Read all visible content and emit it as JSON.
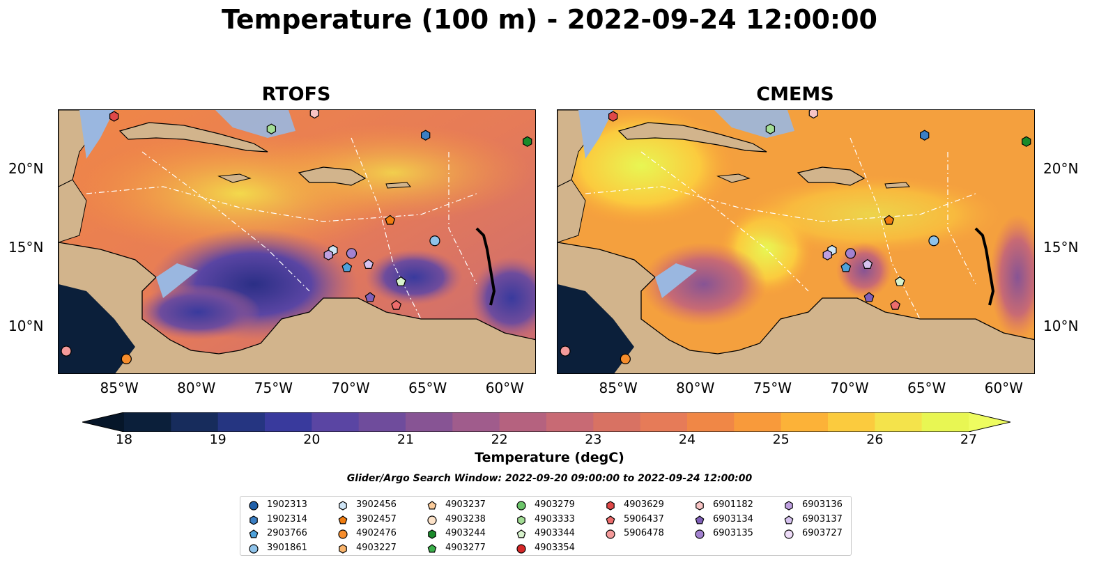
{
  "title": "Temperature (100 m) - 2022-09-24 12:00:00",
  "panels": [
    {
      "title": "RTOFS"
    },
    {
      "title": "CMEMS"
    }
  ],
  "axes": {
    "lon_ticks": [
      "85°W",
      "80°W",
      "75°W",
      "70°W",
      "65°W",
      "60°W"
    ],
    "lat_ticks": [
      "20°N",
      "15°N",
      "10°N"
    ]
  },
  "colorbar": {
    "label": "Temperature (degC)",
    "ticks": [
      "18",
      "19",
      "20",
      "21",
      "22",
      "23",
      "24",
      "25",
      "26",
      "27"
    ],
    "colors": [
      "#0b1f3a",
      "#172c5c",
      "#253581",
      "#393a9d",
      "#5a45a3",
      "#6f4c9c",
      "#875494",
      "#a05c8c",
      "#b5627f",
      "#c86a74",
      "#d87263",
      "#e67b58",
      "#f08746",
      "#f89a3b",
      "#fcb238",
      "#fbcb3e",
      "#f4e34b",
      "#e8f653"
    ],
    "over_color": "#eefc60",
    "under_color": "#061629"
  },
  "search_window": "Glider/Argo Search Window: 2022-09-20 09:00:00 to 2022-09-24 12:00:00",
  "legend": {
    "items": [
      {
        "label": "1902313",
        "marker": "circle",
        "color": "#1f5fa8"
      },
      {
        "label": "1902314",
        "marker": "hexagon",
        "color": "#3b7fc4"
      },
      {
        "label": "2903766",
        "marker": "pentagon",
        "color": "#4ea1da"
      },
      {
        "label": "3901861",
        "marker": "circle",
        "color": "#8fc3ea"
      },
      {
        "label": "3902456",
        "marker": "hexagon",
        "color": "#cfe6f7"
      },
      {
        "label": "3902457",
        "marker": "pentagon",
        "color": "#f07c10"
      },
      {
        "label": "4902476",
        "marker": "circle",
        "color": "#f68d2c"
      },
      {
        "label": "4903227",
        "marker": "hexagon",
        "color": "#f9b46c"
      },
      {
        "label": "4903237",
        "marker": "pentagon",
        "color": "#fbcb9a"
      },
      {
        "label": "4903238",
        "marker": "circle",
        "color": "#fde3c9"
      },
      {
        "label": "4903244",
        "marker": "hexagon",
        "color": "#1a8a2a"
      },
      {
        "label": "4903277",
        "marker": "pentagon",
        "color": "#3ab04a"
      },
      {
        "label": "4903279",
        "marker": "circle",
        "color": "#6cc56a"
      },
      {
        "label": "4903333",
        "marker": "hexagon",
        "color": "#a3dd95"
      },
      {
        "label": "4903344",
        "marker": "pentagon",
        "color": "#d7f2cc"
      },
      {
        "label": "4903354",
        "marker": "circle",
        "color": "#d62728"
      },
      {
        "label": "4903629",
        "marker": "hexagon",
        "color": "#e04848"
      },
      {
        "label": "5906437",
        "marker": "pentagon",
        "color": "#ec6c6c"
      },
      {
        "label": "5906478",
        "marker": "circle",
        "color": "#f49a9a"
      },
      {
        "label": "6901182",
        "marker": "hexagon",
        "color": "#f8c4c4"
      },
      {
        "label": "6903134",
        "marker": "pentagon",
        "color": "#8060b8"
      },
      {
        "label": "6903135",
        "marker": "circle",
        "color": "#a382d0"
      },
      {
        "label": "6903136",
        "marker": "hexagon",
        "color": "#bfa0e0"
      },
      {
        "label": "6903137",
        "marker": "pentagon",
        "color": "#d6c2ef"
      },
      {
        "label": "6903727",
        "marker": "circle",
        "color": "#eedcf8"
      }
    ]
  },
  "floats": [
    {
      "lon": -85.4,
      "lat": 23.4,
      "marker": "hexagon",
      "color": "#e04848"
    },
    {
      "lon": -75.2,
      "lat": 22.6,
      "marker": "hexagon",
      "color": "#a3dd95"
    },
    {
      "lon": -72.4,
      "lat": 23.6,
      "marker": "hexagon",
      "color": "#f8c4c4"
    },
    {
      "lon": -65.2,
      "lat": 22.2,
      "marker": "hexagon",
      "color": "#3b7fc4"
    },
    {
      "lon": -58.6,
      "lat": 21.8,
      "marker": "hexagon",
      "color": "#1a8a2a"
    },
    {
      "lon": -67.5,
      "lat": 16.8,
      "marker": "pentagon",
      "color": "#f07c10"
    },
    {
      "lon": -64.6,
      "lat": 15.5,
      "marker": "circle",
      "color": "#8fc3ea"
    },
    {
      "lon": -71.2,
      "lat": 14.9,
      "marker": "hexagon",
      "color": "#cfe6f7"
    },
    {
      "lon": -71.5,
      "lat": 14.6,
      "marker": "hexagon",
      "color": "#bfa0e0"
    },
    {
      "lon": -70.0,
      "lat": 14.7,
      "marker": "circle",
      "color": "#a382d0"
    },
    {
      "lon": -70.3,
      "lat": 13.8,
      "marker": "pentagon",
      "color": "#4ea1da"
    },
    {
      "lon": -68.9,
      "lat": 14.0,
      "marker": "pentagon",
      "color": "#d6c2ef"
    },
    {
      "lon": -66.8,
      "lat": 12.9,
      "marker": "pentagon",
      "color": "#d7f2cc"
    },
    {
      "lon": -68.8,
      "lat": 11.9,
      "marker": "pentagon",
      "color": "#8060b8"
    },
    {
      "lon": -67.1,
      "lat": 11.4,
      "marker": "pentagon",
      "color": "#ec6c6c"
    },
    {
      "lon": -88.5,
      "lat": 8.5,
      "marker": "circle",
      "color": "#f49a9a"
    },
    {
      "lon": -84.6,
      "lat": 8.0,
      "marker": "circle",
      "color": "#f68d2c"
    }
  ],
  "map_extent": {
    "lon_min": -89,
    "lon_max": -58,
    "lat_min": 7,
    "lat_max": 23.8
  }
}
